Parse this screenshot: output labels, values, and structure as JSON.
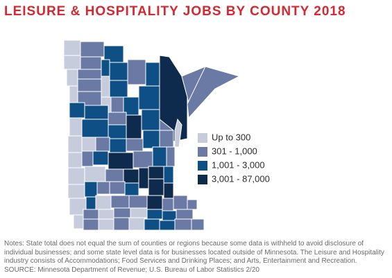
{
  "title": "LEISURE & HOSPITALITY JOBS BY COUNTY 2018",
  "legend": [
    {
      "label": "Up to 300",
      "color": "#c7ccdc"
    },
    {
      "label": "301 - 1,000",
      "color": "#6a7aa5"
    },
    {
      "label": "1,001 - 3,000",
      "color": "#0e4f85"
    },
    {
      "label": "3,001 - 87,000",
      "color": "#0e2a4c"
    }
  ],
  "notes": "Notes: State total does not equal the sum of counties or regions because some data is withheld to avoid disclosure of individual businesses; and some state level data is for businesses located outside of Minnesota. The Leisure and Hospitality industry consists of Accommodations; Food Services and Drinking Places; and Arts, Entertainment and Recreation. SOURCE: Minnesota Department of Revenue; U.S. Bureau of Labor Statistics 2/20"
}
